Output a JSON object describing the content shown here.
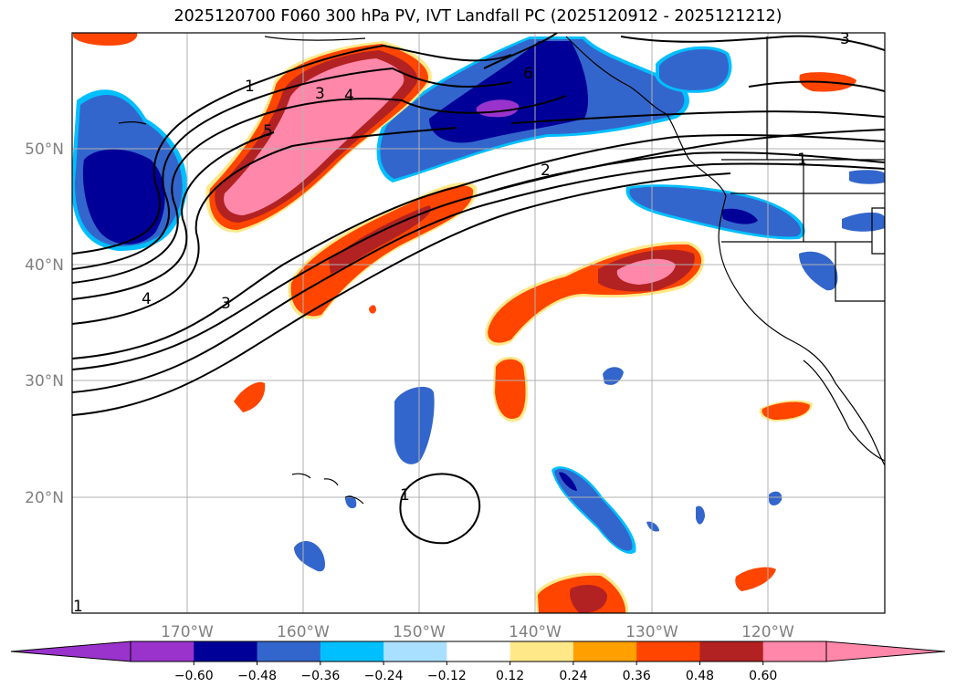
{
  "title": "2025120700 F060 300 hPa PV, IVT Landfall PC (2025120912 - 2025121212)",
  "map": {
    "lon_range": [
      -180,
      -110
    ],
    "lat_range": [
      10,
      60
    ],
    "lon_labels": [
      "170°W",
      "160°W",
      "150°W",
      "140°W",
      "130°W",
      "120°W"
    ],
    "lat_labels": [
      "50°N",
      "40°N",
      "30°N",
      "20°N"
    ],
    "contour_labels": [
      "1",
      "3",
      "4",
      "5",
      "6",
      "2",
      "1",
      "3",
      "4",
      "3",
      "1",
      "1"
    ]
  },
  "colorbar": {
    "ticks": [
      "−0.60",
      "−0.48",
      "−0.36",
      "−0.24",
      "−0.12",
      "0.12",
      "0.24",
      "0.36",
      "0.48",
      "0.60"
    ],
    "colors": [
      "#9933cc",
      "#000099",
      "#3366cc",
      "#00bfff",
      "#aae0ff",
      "#ffffff",
      "#ffe888",
      "#ffa000",
      "#ff4500",
      "#b22222",
      "#ff88aa"
    ],
    "extend_min_color": "#9933cc",
    "extend_max_color": "#ff88aa"
  },
  "colors": {
    "gridline": "#b0b0b0",
    "coast": "#000000",
    "contour": "#000000"
  }
}
